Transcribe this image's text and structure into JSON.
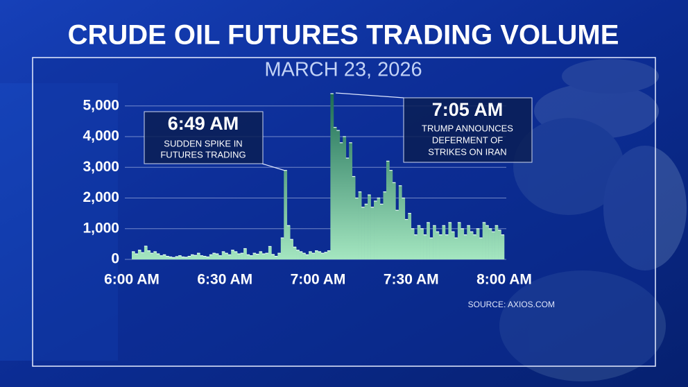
{
  "chart_data": {
    "type": "area",
    "title": "CRUDE OIL FUTURES TRADING VOLUME",
    "subtitle": "MARCH 23, 2026",
    "source": "SOURCE: AXIOS.COM",
    "annotations": [
      {
        "title": "6:49 AM",
        "text": [
          "SUDDEN SPIKE IN",
          "FUTURES TRADING"
        ]
      },
      {
        "title": "7:05 AM",
        "text": [
          "TRUMP ANNOUNCES",
          "DEFERMENT OF",
          "STRIKES ON IRAN"
        ]
      }
    ],
    "x": [
      0,
      1,
      2,
      3,
      4,
      5,
      6,
      7,
      8,
      9,
      10,
      11,
      12,
      13,
      14,
      15,
      16,
      17,
      18,
      19,
      20,
      21,
      22,
      23,
      24,
      25,
      26,
      27,
      28,
      29,
      30,
      31,
      32,
      33,
      34,
      35,
      36,
      37,
      38,
      39,
      40,
      41,
      42,
      43,
      44,
      45,
      46,
      47,
      48,
      49,
      50,
      51,
      52,
      53,
      54,
      55,
      56,
      57,
      58,
      59,
      60,
      61,
      62,
      63,
      64,
      65,
      66,
      67,
      68,
      69,
      70,
      71,
      72,
      73,
      74,
      75,
      76,
      77,
      78,
      79,
      80,
      81,
      82,
      83,
      84,
      85,
      86,
      87,
      88,
      89,
      90,
      91,
      92,
      93,
      94,
      95,
      96,
      97,
      98,
      99,
      100,
      101,
      102,
      103,
      104,
      105,
      106,
      107,
      108,
      109,
      110,
      111,
      112,
      113,
      114,
      115,
      116,
      117,
      118,
      119
    ],
    "values": [
      250,
      180,
      300,
      220,
      430,
      280,
      200,
      250,
      180,
      120,
      150,
      100,
      80,
      60,
      90,
      120,
      80,
      70,
      100,
      150,
      130,
      200,
      120,
      100,
      80,
      150,
      200,
      180,
      120,
      250,
      200,
      150,
      300,
      250,
      180,
      200,
      350,
      150,
      120,
      200,
      170,
      250,
      180,
      200,
      420,
      160,
      100,
      200,
      700,
      2900,
      1100,
      650,
      400,
      300,
      250,
      200,
      150,
      250,
      200,
      280,
      250,
      200,
      230,
      280,
      5400,
      4300,
      4200,
      3800,
      4000,
      3300,
      3800,
      2700,
      2000,
      2200,
      1700,
      1800,
      2100,
      1700,
      1900,
      2000,
      1800,
      2200,
      3200,
      2900,
      2500,
      1600,
      2400,
      2000,
      1300,
      1500,
      1000,
      800,
      1100,
      1000,
      800,
      1200,
      700,
      1100,
      900,
      800,
      1100,
      800,
      1200,
      900,
      700,
      1200,
      1000,
      800,
      1100,
      900,
      800,
      1000,
      700,
      1200,
      1100,
      1000,
      900,
      1100,
      950,
      800
    ],
    "xlim": [
      0,
      120
    ],
    "xticks": [
      {
        "value": 0,
        "label": "6:00 AM"
      },
      {
        "value": 30,
        "label": "6:30 AM"
      },
      {
        "value": 60,
        "label": "7:00 AM"
      },
      {
        "value": 90,
        "label": "7:30 AM"
      },
      {
        "value": 120,
        "label": "8:00 AM"
      }
    ],
    "ylim": [
      0,
      5400
    ],
    "yticks": [
      0,
      {
        "value": 1000,
        "label": "1,000"
      },
      {
        "value": 2000,
        "label": "2,000"
      },
      {
        "value": 3000,
        "label": "3,000"
      },
      {
        "value": 4000,
        "label": "4,000"
      },
      {
        "value": 5000,
        "label": "5,000"
      }
    ],
    "grid": true
  }
}
